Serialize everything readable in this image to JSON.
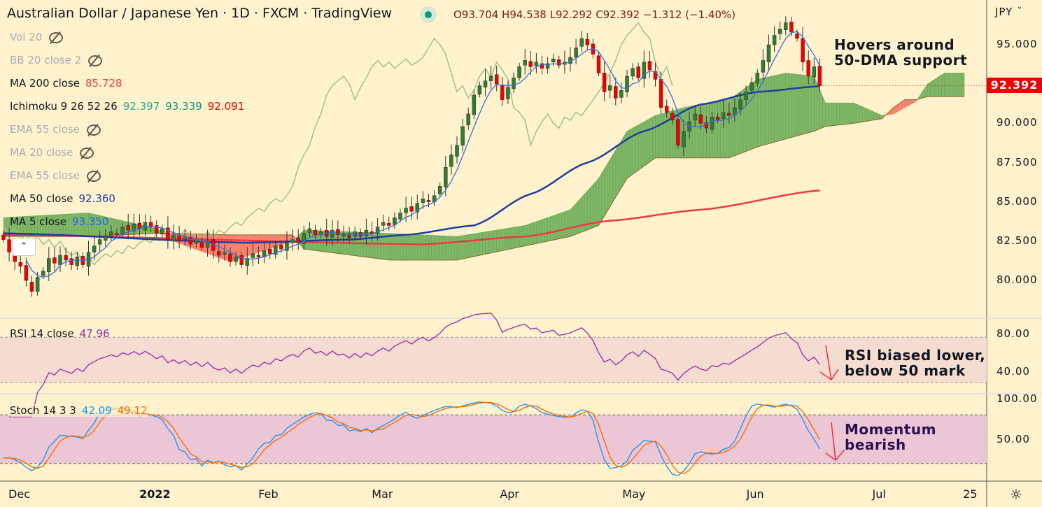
{
  "header": {
    "title": "Australian Dollar / Japanese Yen · 1D · FXCM · TradingView",
    "ohlc": "O93.704 H94.538 L92.292 C92.392 −1.312 (−1.40%)",
    "currency": "JPY ˇ"
  },
  "legend": [
    {
      "label": "Vol 20",
      "hidden": true
    },
    {
      "label": "BB 20 close 2",
      "hidden": true
    },
    {
      "label": "MA 200 close",
      "value": "85.728",
      "color": "#f23645"
    },
    {
      "label": "Ichimoku 9 26 52 26",
      "values": [
        "92.397",
        "93.339",
        "92.091"
      ],
      "colors": [
        "#22ab94",
        "#089981",
        "#f20000"
      ]
    },
    {
      "label": "EMA 55 close",
      "hidden": true
    },
    {
      "label": "MA 20 close",
      "hidden": true
    },
    {
      "label": "EMA 55 close",
      "hidden": true
    },
    {
      "label": "MA 50 close",
      "value": "92.360",
      "color": "#1e3ea0"
    },
    {
      "label": "MA 5 close",
      "value": "93.350",
      "color": "#2962ff"
    }
  ],
  "rsi": {
    "label": "RSI 14 close",
    "value": "47.96",
    "axis": [
      "80.00",
      "40.00"
    ]
  },
  "stoch": {
    "label": "Stoch 14 3 3",
    "k": "42.09",
    "d": "49.12",
    "axis": [
      "100.00",
      "50.00"
    ]
  },
  "annotations": {
    "price": "Hovers around\n50-DMA support",
    "rsi": "RSI biased lower,\nbelow 50 mark",
    "stoch": "Momentum\nbearish"
  },
  "colors": {
    "up": "#2e7d32",
    "down": "#f20000",
    "ma50": "#1e3ea0",
    "ma200": "#f23645",
    "ma5": "#3a6fd8",
    "cloud_up": "#6aab55",
    "cloud_down": "#f7735f",
    "lagging": "#9cc48a",
    "rsi": "#9c27b0",
    "k": "#2196f3",
    "d": "#ff6d00"
  },
  "chart_data": {
    "type": "candlestick",
    "title": "Australian Dollar / Japanese Yen · 1D · FXCM",
    "last_price": "92.392",
    "y_ticks": [
      "95.000",
      "90.000",
      "87.500",
      "85.000",
      "82.500",
      "80.000"
    ],
    "y_tick_values": [
      95,
      90,
      87.5,
      85,
      82.5,
      80
    ],
    "ylim": [
      78,
      97.5
    ],
    "x_ticks": [
      {
        "label": "Dec",
        "i": 2.6
      },
      {
        "label": "2022",
        "i": 25.7,
        "bold": true
      },
      {
        "label": "Feb",
        "i": 46.7
      },
      {
        "label": "Mar",
        "i": 66.7
      },
      {
        "label": "Apr",
        "i": 89.3
      },
      {
        "label": "May",
        "i": 110.9
      },
      {
        "label": "Jun",
        "i": 132.8
      },
      {
        "label": "Jul",
        "i": 155
      },
      {
        "label": "25",
        "i": 171
      }
    ],
    "closes": [
      82.6,
      81.8,
      81.2,
      80.9,
      80.0,
      79.3,
      80.2,
      80.6,
      81.4,
      81.1,
      81.6,
      81.3,
      81.0,
      81.5,
      81.0,
      81.8,
      82.2,
      82.6,
      82.8,
      83.1,
      82.9,
      83.4,
      83.2,
      83.6,
      83.3,
      83.7,
      83.4,
      83.0,
      83.3,
      82.6,
      82.9,
      82.5,
      82.8,
      82.3,
      82.6,
      82.1,
      82.5,
      81.9,
      81.6,
      81.8,
      81.2,
      81.5,
      81.0,
      81.4,
      81.7,
      81.5,
      81.9,
      81.7,
      82.2,
      82.0,
      82.4,
      82.6,
      82.4,
      83.0,
      83.3,
      82.9,
      83.1,
      82.8,
      83.2,
      82.9,
      83.0,
      82.7,
      83.1,
      82.8,
      83.2,
      83.0,
      83.4,
      83.7,
      83.5,
      84.0,
      84.3,
      84.6,
      84.4,
      84.9,
      85.2,
      85.0,
      85.4,
      86.0,
      87.2,
      88.0,
      88.6,
      89.8,
      90.6,
      91.8,
      92.4,
      92.7,
      93.0,
      92.5,
      91.5,
      92.3,
      92.9,
      93.6,
      94.0,
      93.6,
      93.9,
      93.5,
      93.8,
      94.1,
      93.7,
      93.9,
      94.2,
      94.8,
      95.4,
      95.0,
      94.4,
      93.2,
      92.0,
      92.4,
      91.6,
      92.1,
      93.0,
      93.5,
      92.9,
      93.9,
      93.4,
      92.8,
      91.0,
      90.7,
      90.2,
      88.6,
      89.5,
      90.1,
      90.6,
      90.0,
      89.7,
      90.4,
      90.2,
      90.7,
      90.5,
      91.0,
      91.5,
      92.0,
      92.6,
      93.2,
      94.0,
      95.0,
      95.6,
      96.0,
      96.4,
      95.8,
      95.4,
      93.9,
      93.0,
      93.6,
      92.392
    ],
    "ma50": [
      [
        0,
        83.0
      ],
      [
        43,
        82.4
      ],
      [
        61,
        82.6
      ],
      [
        71,
        82.9
      ],
      [
        83,
        83.5
      ],
      [
        93,
        85.5
      ],
      [
        103,
        87.5
      ],
      [
        113,
        89.5
      ],
      [
        123,
        91.2
      ],
      [
        133,
        92.0
      ],
      [
        144,
        92.36
      ]
    ],
    "ma200": [
      [
        0,
        82.9
      ],
      [
        74,
        82.3
      ],
      [
        92,
        82.8
      ],
      [
        107,
        83.8
      ],
      [
        123,
        84.5
      ],
      [
        144,
        85.73
      ]
    ],
    "cloud": [
      [
        0,
        84.0,
        82.8
      ],
      [
        15,
        84.3,
        82.8
      ],
      [
        27,
        83.3,
        83.0
      ],
      [
        30,
        82.5,
        83.0
      ],
      [
        40,
        81.2,
        82.9
      ],
      [
        51,
        82.5,
        82.9
      ],
      [
        53,
        83.2,
        82.0
      ],
      [
        68,
        83.0,
        81.3
      ],
      [
        80,
        82.8,
        81.3
      ],
      [
        92,
        83.5,
        82.2
      ],
      [
        100,
        84.5,
        82.8
      ],
      [
        105,
        86.5,
        83.5
      ],
      [
        110,
        89.5,
        86.5
      ],
      [
        115,
        90.5,
        87.8
      ],
      [
        120,
        91.0,
        87.8
      ],
      [
        128,
        91.5,
        87.8
      ],
      [
        133,
        92.8,
        88.5
      ],
      [
        138,
        93.2,
        89.0
      ],
      [
        143,
        93.0,
        89.5
      ],
      [
        145,
        91.3,
        89.8
      ],
      [
        150,
        91.3,
        90.0
      ],
      [
        155,
        90.5,
        90.3
      ],
      [
        157,
        90.6,
        91.0
      ],
      [
        159,
        91.0,
        91.5
      ],
      [
        161,
        91.4,
        91.5
      ],
      [
        163,
        92.5,
        91.7
      ],
      [
        166,
        93.2,
        91.7
      ],
      [
        170,
        93.2,
        91.7
      ]
    ]
  }
}
